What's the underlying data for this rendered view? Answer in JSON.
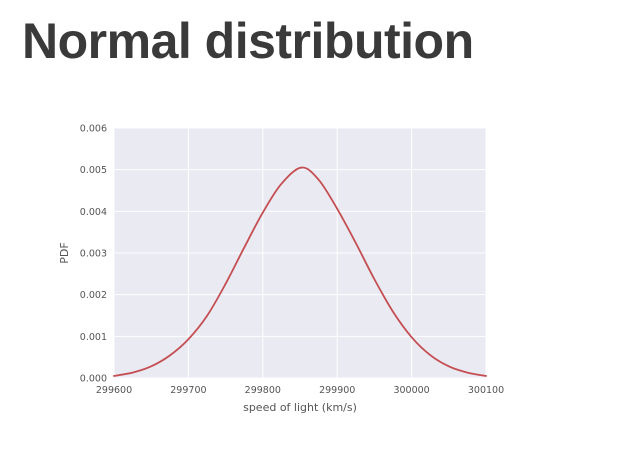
{
  "slide": {
    "title": "Normal distribution"
  },
  "chart_data": {
    "type": "line",
    "title": "",
    "xlabel": "speed of light (km/s)",
    "ylabel": "PDF",
    "xlim": [
      299600,
      300100
    ],
    "ylim": [
      0,
      0.006
    ],
    "x_ticks": [
      299600,
      299700,
      299800,
      299900,
      300000,
      300100
    ],
    "x_tick_labels": [
      "299600",
      "299700",
      "299800",
      "299900",
      "300000",
      "300100"
    ],
    "y_ticks": [
      0,
      0.001,
      0.002,
      0.003,
      0.004,
      0.005,
      0.006
    ],
    "y_tick_labels": [
      "0.000",
      "0.001",
      "0.002",
      "0.003",
      "0.004",
      "0.005",
      "0.006"
    ],
    "grid": true,
    "background_color": "#eaeaf2",
    "grid_color": "#ffffff",
    "series": [
      {
        "color": "#c44e52",
        "x": [
          299600,
          299625,
          299650,
          299675,
          299700,
          299725,
          299750,
          299775,
          299800,
          299825,
          299852,
          299875,
          299900,
          299925,
          299950,
          299975,
          300000,
          300025,
          300050,
          300075,
          300100
        ],
        "y": [
          5e-05,
          0.00013,
          0.00028,
          0.00054,
          0.00093,
          0.00149,
          0.00226,
          0.00313,
          0.00397,
          0.00466,
          0.00505,
          0.00476,
          0.00406,
          0.00324,
          0.00237,
          0.00159,
          0.00098,
          0.00055,
          0.00028,
          0.00013,
          5e-05
        ]
      }
    ]
  }
}
